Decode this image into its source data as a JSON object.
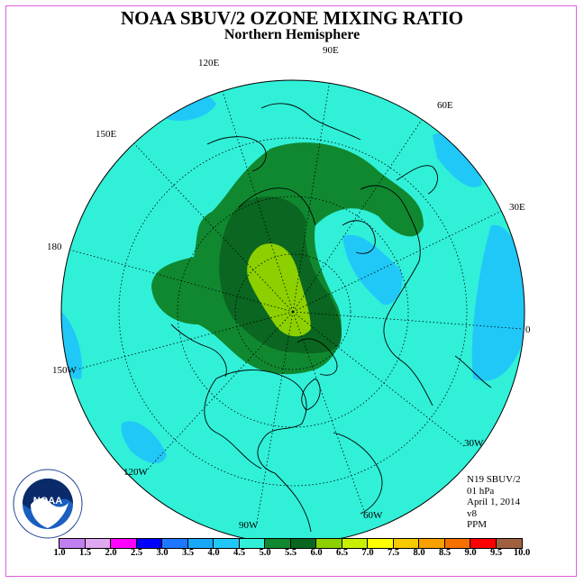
{
  "title": "NOAA SBUV/2 OZONE MIXING RATIO",
  "subtitle": "Northern Hemisphere",
  "longitudes": [
    {
      "key": "90e",
      "label": "90E"
    },
    {
      "key": "120e",
      "label": "120E"
    },
    {
      "key": "60e",
      "label": "60E"
    },
    {
      "key": "150e",
      "label": "150E"
    },
    {
      "key": "30e",
      "label": "30E"
    },
    {
      "key": "180",
      "label": "180"
    },
    {
      "key": "0",
      "label": "0"
    },
    {
      "key": "150w",
      "label": "150W"
    },
    {
      "key": "30w",
      "label": "30W"
    },
    {
      "key": "120w",
      "label": "120W"
    },
    {
      "key": "60w",
      "label": "60W"
    },
    {
      "key": "90w",
      "label": "90W"
    }
  ],
  "info": {
    "satellite": "N19 SBUV/2",
    "level": "01 hPa",
    "date": "April 1, 2014",
    "version": "v8",
    "units": "PPM"
  },
  "logo": {
    "text": "NOAA",
    "ring_text": "NATIONAL OCEANIC AND ATMOSPHERIC ADMINISTRATION · U.S. DEPARTMENT OF COMMERCE"
  },
  "colorbar": {
    "ticks": [
      "1.0",
      "1.5",
      "2.0",
      "2.5",
      "3.0",
      "3.5",
      "4.0",
      "4.5",
      "5.0",
      "5.5",
      "6.0",
      "6.5",
      "7.0",
      "7.5",
      "8.0",
      "8.5",
      "9.0",
      "9.5",
      "10.0"
    ],
    "colors": [
      "#c080f0",
      "#e0a8f0",
      "#ff00ff",
      "#0000ff",
      "#1e78ff",
      "#18a8f8",
      "#20c8f8",
      "#30f0d8",
      "#108830",
      "#0a6620",
      "#8cd000",
      "#c8f000",
      "#ffff00",
      "#f8c800",
      "#f8a000",
      "#f87000",
      "#ff0000",
      "#a06040"
    ]
  },
  "map_colors": {
    "background": "#30f0d8",
    "low": "#20c8f8",
    "mid": "#108830",
    "high": "#0a6620",
    "peak": "#8cd000"
  }
}
